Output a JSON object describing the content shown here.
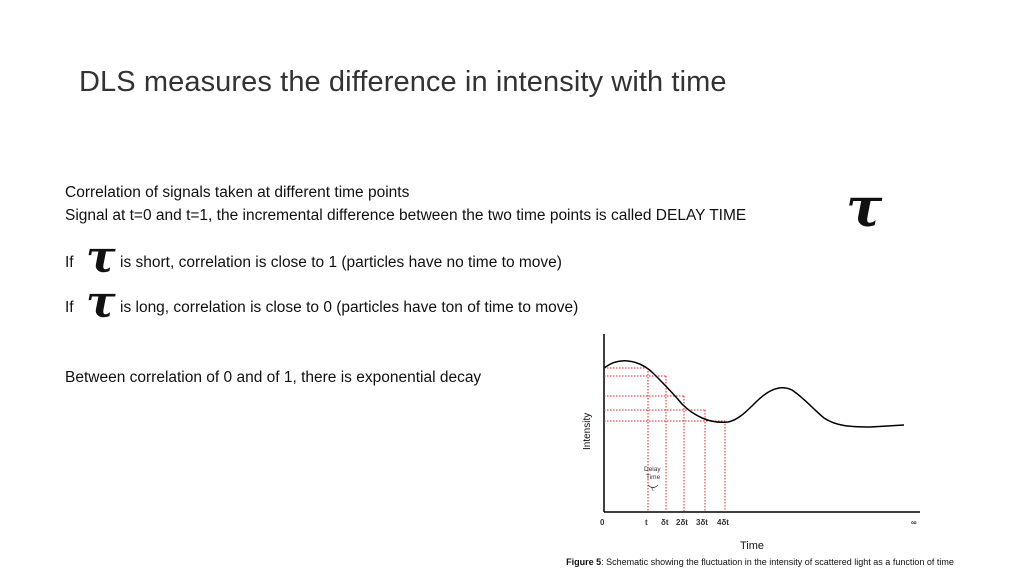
{
  "slide": {
    "title": "DLS measures the difference in intensity with time",
    "line1": "Correlation of signals taken at different time points",
    "line2": "Signal at t=0 and t=1, the incremental difference between the two time points is called DELAY TIME",
    "tau_symbol": "τ",
    "if_word": "If",
    "short_text": "is short, correlation is close to 1 (particles have no time to move)",
    "long_text": "is long, correlation is close to 0 (particles have ton of time to move)",
    "decay_text": "Between correlation of 0 and of 1, there is exponential decay"
  },
  "figure": {
    "ylabel": "Intensity",
    "xlabel": "Time",
    "delay_label_line1": "Delay",
    "delay_label_line2": "Time",
    "delay_label_symbol": "τ",
    "ticks": {
      "zero": "0",
      "t": "t",
      "dt1": "δt",
      "dt2": "2δt",
      "dt3": "3δt",
      "dt4": "4δt",
      "inf": "∞"
    },
    "caption_bold": "Figure 5",
    "caption_rest": ": Schematic showing the fluctuation in the intensity of scattered light as a function of time",
    "curve_color": "#000000",
    "marker_color": "#e02020"
  }
}
